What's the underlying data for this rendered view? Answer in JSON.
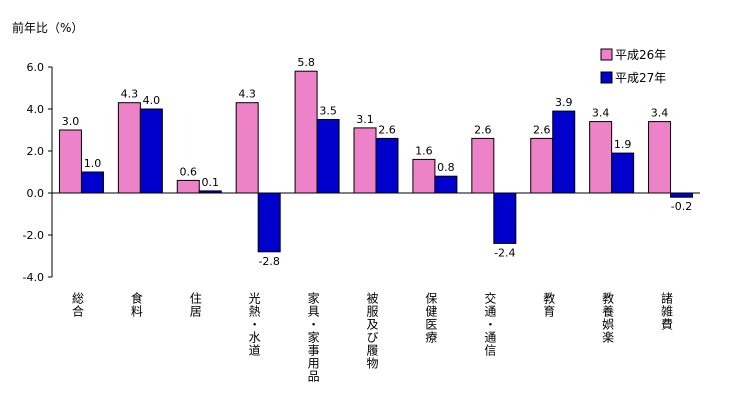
{
  "chart_data": {
    "type": "bar",
    "ylabel": "前年比（%）",
    "ylim": [
      -4.0,
      6.0
    ],
    "ytick_step": 2.0,
    "grid": false,
    "legend_position": "top-right",
    "categories": [
      "総合",
      "食料",
      "住居",
      "光熱・水道",
      "家具・家事用品",
      "被服及び履物",
      "保健医療",
      "交通・通信",
      "教育",
      "教養娯楽",
      "諸雑費"
    ],
    "series": [
      {
        "name": "平成26年",
        "color": "#ee82c8",
        "values": [
          3.0,
          4.3,
          0.6,
          4.3,
          5.8,
          3.1,
          1.6,
          2.6,
          2.6,
          3.4,
          3.4
        ]
      },
      {
        "name": "平成27年",
        "color": "#0000cc",
        "values": [
          1.0,
          4.0,
          0.1,
          -2.8,
          3.5,
          2.6,
          0.8,
          -2.4,
          3.9,
          1.9,
          -0.2
        ]
      }
    ]
  }
}
